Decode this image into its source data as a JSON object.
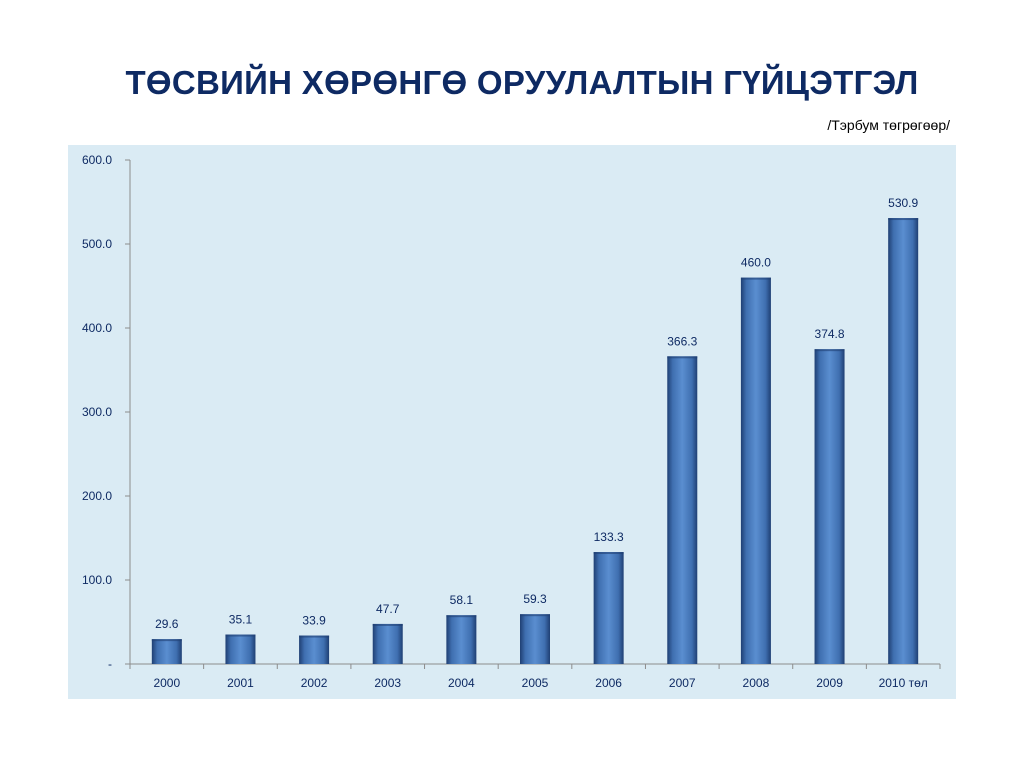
{
  "title": "ТӨСВИЙН ХӨРӨНГӨ ОРУУЛАЛТЫН ГҮЙЦЭТГЭЛ",
  "unit_note": "/Тэрбум төгрөгөөр/",
  "colors": {
    "title": "#0e2a63",
    "plot_background": "#daebf4",
    "bar": "#4a7cc0",
    "bar_dark": "#1f3f73",
    "axis": "#8c8c8c",
    "text": "#0e2a63"
  },
  "chart_data": {
    "type": "bar",
    "title": "",
    "xlabel": "",
    "ylabel": "",
    "categories": [
      "2000",
      "2001",
      "2002",
      "2003",
      "2004",
      "2005",
      "2006",
      "2007",
      "2008",
      "2009",
      "2010 төл"
    ],
    "values": [
      29.6,
      35.1,
      33.9,
      47.7,
      58.1,
      59.3,
      133.3,
      366.3,
      460.0,
      374.8,
      530.9
    ],
    "data_labels": [
      "29.6",
      "35.1",
      "33.9",
      "47.7",
      "58.1",
      "59.3",
      "133.3",
      "366.3",
      "460.0",
      "374.8",
      "530.9"
    ],
    "ylim": [
      0,
      600
    ],
    "yticks": [
      0,
      100,
      200,
      300,
      400,
      500,
      600
    ],
    "ytick_labels": [
      "-",
      "100.0",
      "200.0",
      "300.0",
      "400.0",
      "500.0",
      "600.0"
    ],
    "grid": false,
    "legend": "none"
  }
}
